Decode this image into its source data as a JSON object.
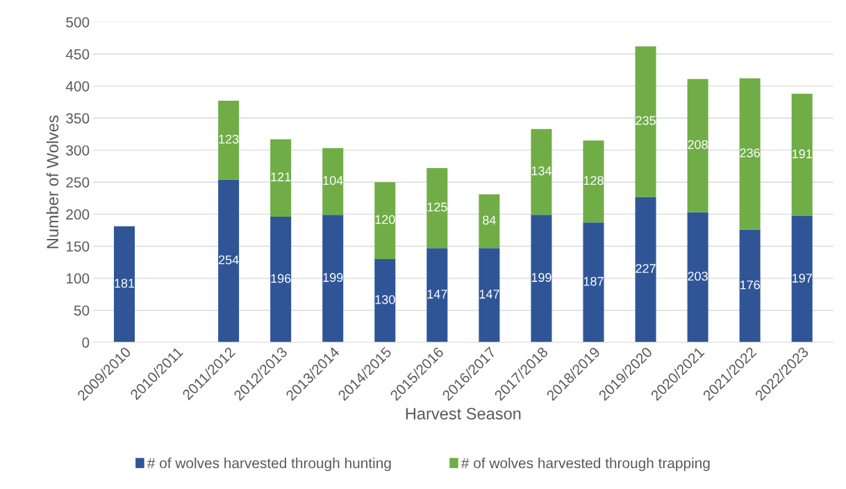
{
  "chart_data": {
    "type": "bar",
    "stacked": true,
    "xlabel": "Harvest Season",
    "ylabel": "Number of Wolves",
    "categories": [
      "2009/2010",
      "2010/2011",
      "2011/2012",
      "2012/2013",
      "2013/2014",
      "2014/2015",
      "2015/2016",
      "2016/2017",
      "2017/2018",
      "2018/2019",
      "2019/2020",
      "2020/2021",
      "2021/2022",
      "2022/2023"
    ],
    "series": [
      {
        "name": "# of wolves harvested through hunting",
        "color": "#2f5597",
        "values": [
          181,
          null,
          254,
          196,
          199,
          130,
          147,
          147,
          199,
          187,
          227,
          203,
          176,
          197
        ]
      },
      {
        "name": "# of wolves harvested through trapping",
        "color": "#70ad47",
        "values": [
          null,
          null,
          123,
          121,
          104,
          120,
          125,
          84,
          134,
          128,
          235,
          208,
          236,
          191
        ]
      }
    ],
    "ylim": [
      0,
      500
    ],
    "yticks": [
      0,
      50,
      100,
      150,
      200,
      250,
      300,
      350,
      400,
      450,
      500
    ],
    "grid": "y",
    "legend": "bottom",
    "data_labels": true
  }
}
